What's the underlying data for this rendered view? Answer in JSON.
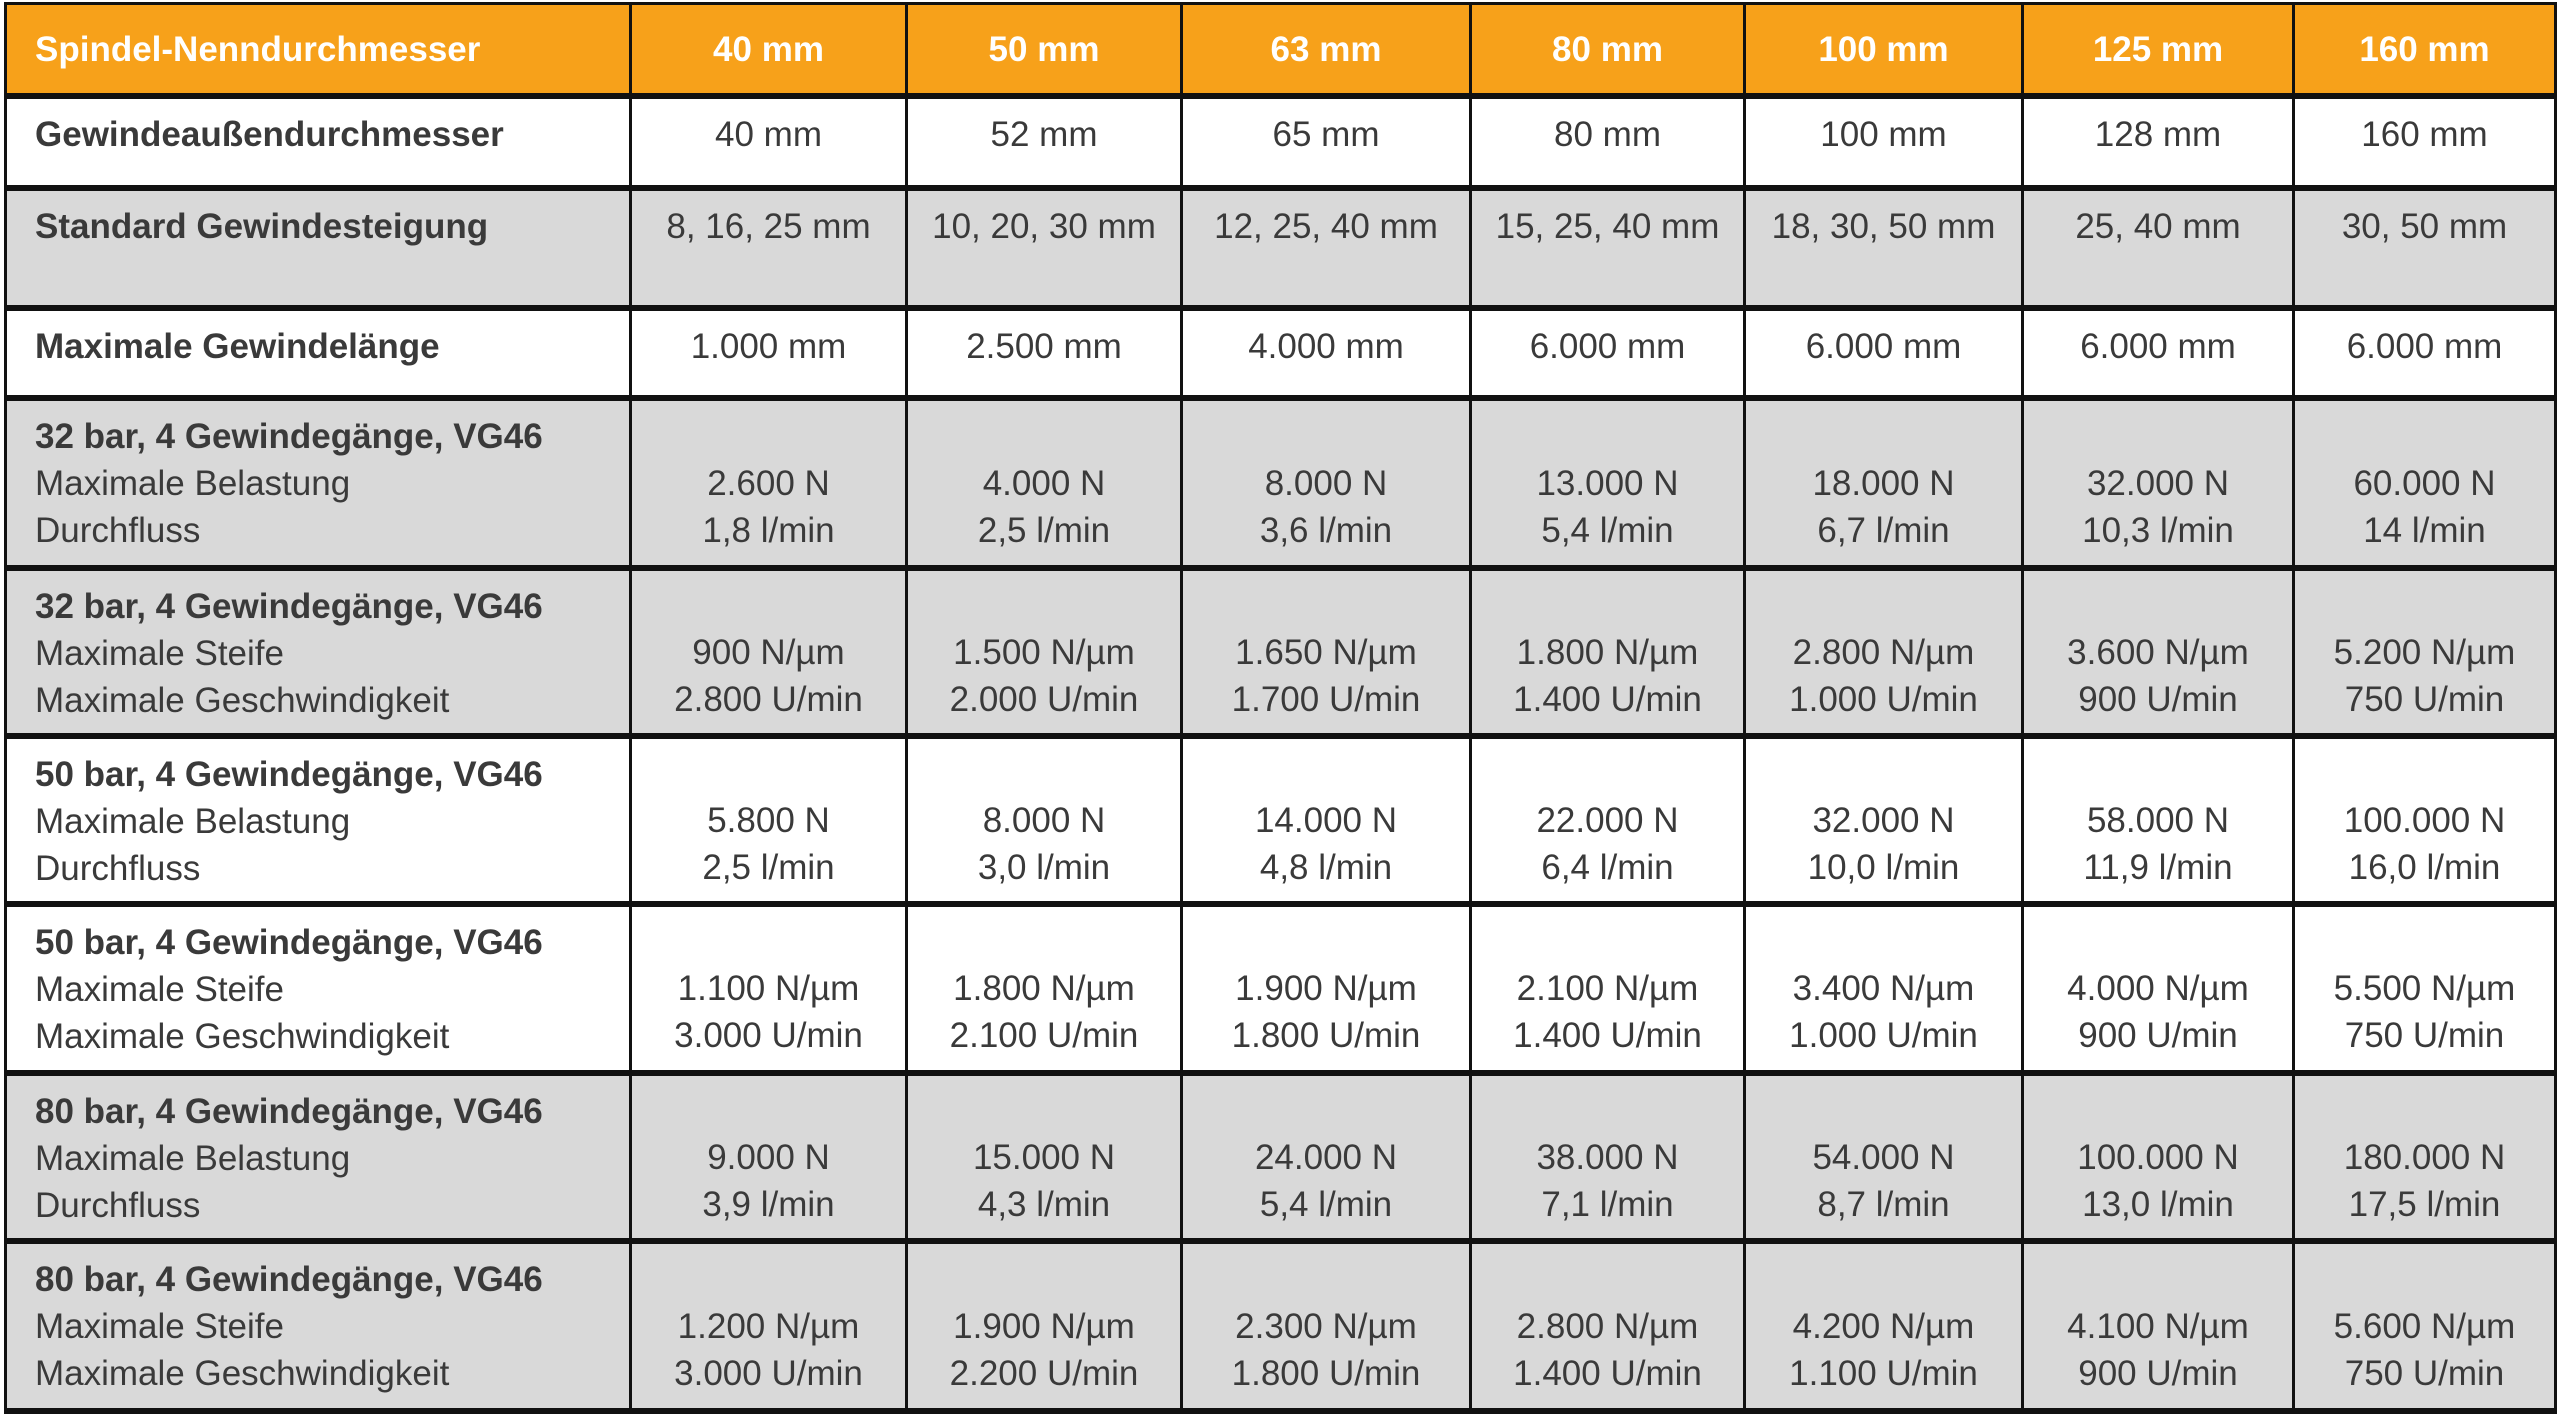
{
  "colors": {
    "header": "#F7A11A",
    "gray_row": "#D9D9D9",
    "white_row": "#FFFFFF",
    "text": "#3A3A3A"
  },
  "header": [
    "Spindel-Nenndurchmesser",
    "40 mm",
    "50 mm",
    "63 mm",
    "80 mm",
    "100 mm",
    "125 mm",
    "160 mm"
  ],
  "rows": [
    {
      "shade": "white",
      "label": [
        "Gewindeaußendurchmesser"
      ],
      "values": [
        [
          "40 mm"
        ],
        [
          "52 mm"
        ],
        [
          "65 mm"
        ],
        [
          "80 mm"
        ],
        [
          "100 mm"
        ],
        [
          "128 mm"
        ],
        [
          "160 mm"
        ]
      ]
    },
    {
      "shade": "gray",
      "label": [
        "Standard Gewindesteigung"
      ],
      "values": [
        [
          "8, 16, 25 mm"
        ],
        [
          "10, 20, 30 mm"
        ],
        [
          "12, 25, 40 mm"
        ],
        [
          "15, 25, 40 mm"
        ],
        [
          "18, 30, 50 mm"
        ],
        [
          "25, 40 mm"
        ],
        [
          "30, 50 mm"
        ]
      ]
    },
    {
      "shade": "white",
      "label": [
        "Maximale Gewindelänge"
      ],
      "values": [
        [
          "1.000 mm"
        ],
        [
          "2.500 mm"
        ],
        [
          "4.000 mm"
        ],
        [
          "6.000 mm"
        ],
        [
          "6.000 mm"
        ],
        [
          "6.000 mm"
        ],
        [
          "6.000 mm"
        ]
      ]
    },
    {
      "shade": "gray",
      "label": [
        "32 bar, 4 Gewindegänge, VG46",
        "Maximale Belastung",
        "Durchfluss"
      ],
      "values": [
        [
          "2.600 N",
          "1,8 l/min"
        ],
        [
          "4.000 N",
          "2,5 l/min"
        ],
        [
          "8.000 N",
          "3,6 l/min"
        ],
        [
          "13.000 N",
          "5,4 l/min"
        ],
        [
          "18.000 N",
          "6,7 l/min"
        ],
        [
          "32.000 N",
          "10,3 l/min"
        ],
        [
          "60.000 N",
          "14 l/min"
        ]
      ]
    },
    {
      "shade": "gray",
      "label": [
        "32 bar, 4 Gewindegänge, VG46",
        "Maximale Steife",
        "Maximale Geschwindigkeit"
      ],
      "values": [
        [
          "900 N/µm",
          "2.800 U/min"
        ],
        [
          "1.500 N/µm",
          "2.000 U/min"
        ],
        [
          "1.650 N/µm",
          "1.700 U/min"
        ],
        [
          "1.800 N/µm",
          "1.400 U/min"
        ],
        [
          "2.800 N/µm",
          "1.000 U/min"
        ],
        [
          "3.600 N/µm",
          "900 U/min"
        ],
        [
          "5.200 N/µm",
          "750 U/min"
        ]
      ]
    },
    {
      "shade": "white",
      "label": [
        "50 bar, 4 Gewindegänge, VG46",
        "Maximale Belastung",
        "Durchfluss"
      ],
      "values": [
        [
          "5.800 N",
          "2,5 l/min"
        ],
        [
          "8.000 N",
          "3,0 l/min"
        ],
        [
          "14.000 N",
          "4,8 l/min"
        ],
        [
          "22.000 N",
          "6,4 l/min"
        ],
        [
          "32.000 N",
          "10,0 l/min"
        ],
        [
          "58.000 N",
          "11,9 l/min"
        ],
        [
          "100.000 N",
          "16,0 l/min"
        ]
      ]
    },
    {
      "shade": "white",
      "label": [
        "50 bar, 4 Gewindegänge, VG46",
        "Maximale Steife",
        "Maximale Geschwindigkeit"
      ],
      "values": [
        [
          "1.100 N/µm",
          "3.000 U/min"
        ],
        [
          "1.800 N/µm",
          "2.100 U/min"
        ],
        [
          "1.900 N/µm",
          "1.800 U/min"
        ],
        [
          "2.100 N/µm",
          "1.400 U/min"
        ],
        [
          "3.400 N/µm",
          "1.000 U/min"
        ],
        [
          "4.000 N/µm",
          "900 U/min"
        ],
        [
          "5.500 N/µm",
          "750 U/min"
        ]
      ]
    },
    {
      "shade": "gray",
      "label": [
        "80 bar, 4 Gewindegänge, VG46",
        "Maximale Belastung",
        "Durchfluss"
      ],
      "values": [
        [
          "9.000 N",
          "3,9 l/min"
        ],
        [
          "15.000 N",
          "4,3 l/min"
        ],
        [
          "24.000 N",
          "5,4 l/min"
        ],
        [
          "38.000 N",
          "7,1 l/min"
        ],
        [
          "54.000 N",
          "8,7 l/min"
        ],
        [
          "100.000 N",
          "13,0 l/min"
        ],
        [
          "180.000 N",
          "17,5 l/min"
        ]
      ]
    },
    {
      "shade": "gray",
      "label": [
        "80 bar, 4 Gewindegänge, VG46",
        "Maximale Steife",
        "Maximale Geschwindigkeit"
      ],
      "values": [
        [
          "1.200 N/µm",
          "3.000 U/min"
        ],
        [
          "1.900 N/µm",
          "2.200 U/min"
        ],
        [
          "2.300 N/µm",
          "1.800 U/min"
        ],
        [
          "2.800 N/µm",
          "1.400 U/min"
        ],
        [
          "4.200 N/µm",
          "1.100 U/min"
        ],
        [
          "4.100 N/µm",
          "900 U/min"
        ],
        [
          "5.600 N/µm",
          "750 U/min"
        ]
      ]
    }
  ]
}
